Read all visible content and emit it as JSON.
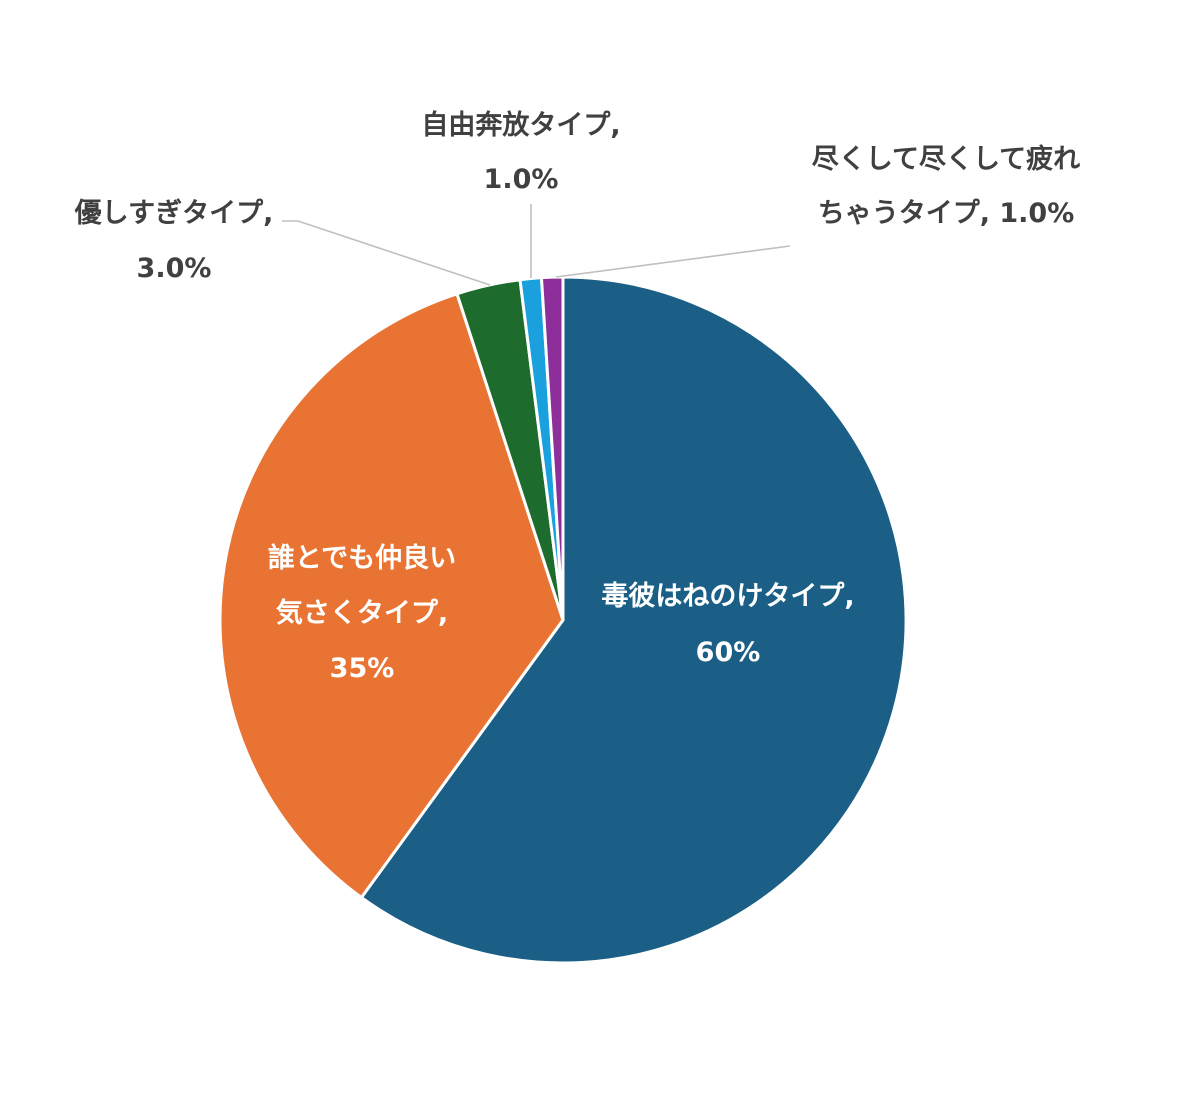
{
  "chart_data": {
    "type": "pie",
    "title": "",
    "legend": "none",
    "slices": [
      {
        "name": "毒彼はねのけタイプ",
        "value": 60,
        "label_lines": [
          "毒彼はねのけタイプ,",
          "60%"
        ],
        "color": "#1b5e86"
      },
      {
        "name": "誰とでも仲良い気さくタイプ",
        "value": 35,
        "label_lines": [
          "誰とでも仲良い",
          "気さくタイプ,",
          "35%"
        ],
        "color": "#e87333"
      },
      {
        "name": "優しすぎタイプ",
        "value": 3.0,
        "label_lines": [
          "優しすぎタイプ,",
          "3.0%"
        ],
        "color": "#1e6b2e"
      },
      {
        "name": "自由奔放タイプ",
        "value": 1.0,
        "label_lines": [
          "自由奔放タイプ,",
          "1.0%"
        ],
        "color": "#1aa0dd"
      },
      {
        "name": "尽くして尽くして疲れちゃうタイプ",
        "value": 1.0,
        "label_lines": [
          "尽くして尽くして疲れ",
          "ちゃうタイプ, 1.0%"
        ],
        "color": "#8e2e9a"
      }
    ]
  }
}
